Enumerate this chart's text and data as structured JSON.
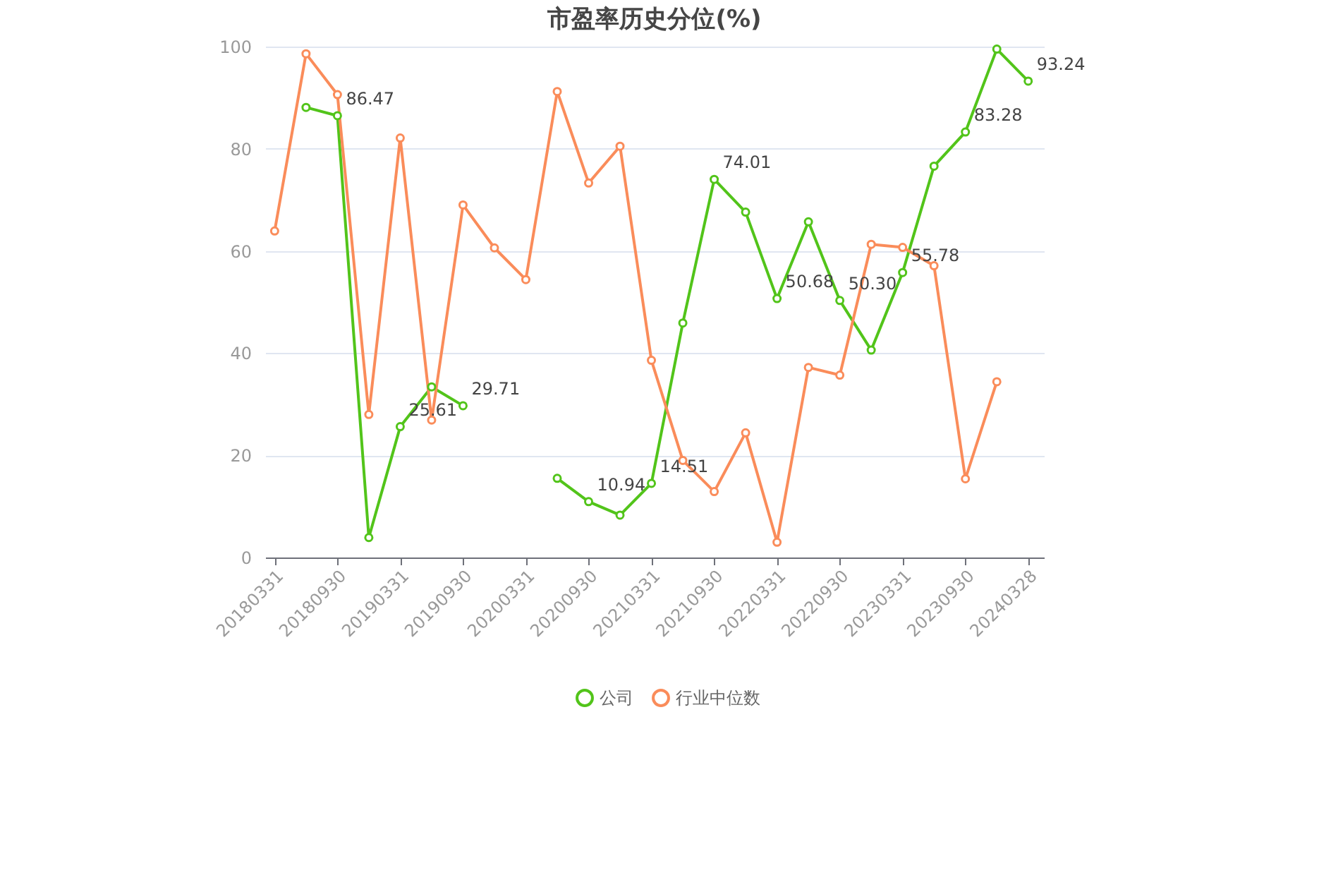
{
  "chart_data": {
    "type": "line",
    "title": "市盈率历史分位(%)",
    "categories": [
      "20180331",
      null,
      "20180930",
      null,
      "20190331",
      null,
      "20190930",
      null,
      "20200331",
      null,
      "20200930",
      null,
      "20210331",
      null,
      "20210930",
      null,
      "20220331",
      null,
      "20220930",
      null,
      "20230331",
      null,
      "20230930",
      null,
      "20240328"
    ],
    "series": [
      {
        "name": "公司",
        "color": "#52c41a",
        "values": [
          null,
          88.1,
          86.47,
          3.9,
          25.61,
          33.4,
          29.71,
          null,
          null,
          15.5,
          10.94,
          8.3,
          14.51,
          45.9,
          74.01,
          67.6,
          50.68,
          65.7,
          50.3,
          40.6,
          55.78,
          76.6,
          83.28,
          99.5,
          93.24
        ],
        "value_labels": [
          null,
          null,
          "86.47",
          null,
          "25.61",
          null,
          "29.71",
          null,
          null,
          null,
          "10.94",
          null,
          "14.51",
          null,
          "74.01",
          null,
          "50.68",
          null,
          "50.30",
          null,
          "55.78",
          null,
          "83.28",
          null,
          "93.24"
        ]
      },
      {
        "name": "行业中位数",
        "color": "#fa8c5a",
        "values": [
          63.9,
          98.6,
          90.6,
          28.0,
          82.1,
          26.9,
          69.0,
          60.6,
          54.4,
          91.2,
          73.3,
          80.5,
          38.6,
          19.0,
          12.9,
          24.4,
          3.0,
          37.2,
          35.7,
          61.3,
          60.7,
          57.1,
          15.4,
          34.4,
          null
        ]
      }
    ],
    "ylim": [
      0,
      100
    ],
    "yticks": [
      0,
      20,
      40,
      60,
      80,
      100
    ],
    "grid": "y",
    "legend": "bottom",
    "marker": "circle",
    "line_style": "solid"
  }
}
